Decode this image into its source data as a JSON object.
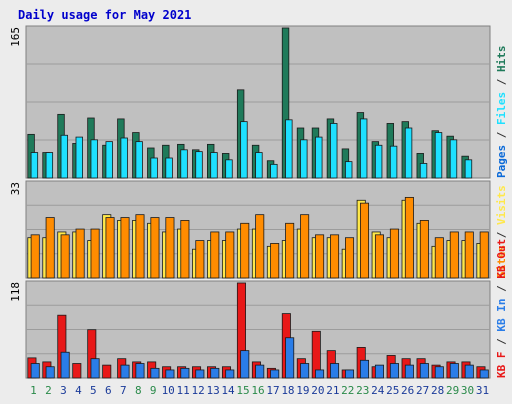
{
  "chart_data": {
    "type": "bar",
    "title": "Daily usage for May 2021",
    "categories": [
      "1",
      "2",
      "3",
      "4",
      "5",
      "6",
      "7",
      "8",
      "9",
      "10",
      "11",
      "12",
      "13",
      "14",
      "15",
      "16",
      "17",
      "18",
      "19",
      "20",
      "21",
      "22",
      "23",
      "24",
      "25",
      "26",
      "27",
      "28",
      "29",
      "30",
      "31"
    ],
    "weekend_days": [
      "1",
      "2",
      "8",
      "9",
      "15",
      "16",
      "22",
      "23",
      "29",
      "30"
    ],
    "colors": {
      "hits": "#1f7a5a",
      "files": "#1ee0ff",
      "pages": "#0b6ad8",
      "visits": "#ffe84a",
      "sites": "#ff8c00",
      "kb_in": "#2a7de8",
      "kb_out": "#e81818",
      "weekday_label": "#1a3a99",
      "weekend_label": "#2a8a4a",
      "title": "#0000cc"
    },
    "panels": [
      {
        "id": "hits-files-pages",
        "ymax_label": "165",
        "ymax": 165,
        "side_label": [
          "Pages",
          "Files",
          "Hits"
        ],
        "side_label_separator": " / ",
        "series": [
          {
            "name": "Hits",
            "values": [
              48,
              28,
              70,
              38,
              66,
              36,
              65,
              50,
              33,
              36,
              37,
              31,
              37,
              27,
              97,
              36,
              19,
              165,
              55,
              55,
              65,
              32,
              72,
              40,
              60,
              62,
              27,
              52,
              46,
              24,
              0
            ]
          },
          {
            "name": "Files",
            "values": [
              28,
              28,
              47,
              45,
              42,
              40,
              44,
              40,
              22,
              22,
              31,
              29,
              28,
              20,
              62,
              28,
              15,
              64,
              42,
              45,
              60,
              18,
              65,
              36,
              35,
              55,
              16,
              50,
              42,
              20,
              0
            ]
          },
          {
            "name": "Pages",
            "values": [
              0,
              0,
              0,
              0,
              0,
              0,
              0,
              0,
              0,
              0,
              0,
              0,
              0,
              0,
              0,
              0,
              0,
              0,
              0,
              0,
              0,
              0,
              0,
              0,
              0,
              0,
              0,
              0,
              0,
              0,
              0
            ]
          }
        ]
      },
      {
        "id": "visits-sites",
        "ymax_label": "33",
        "ymax": 33,
        "side_label": [
          "Sites",
          "Visits"
        ],
        "side_label_separator": " / ",
        "series": [
          {
            "name": "Visits",
            "values": [
              14,
              14,
              16,
              16,
              13,
              22,
              20,
              20,
              19,
              16,
              17,
              10,
              13,
              13,
              17,
              17,
              11,
              13,
              17,
              14,
              14,
              10,
              27,
              16,
              14,
              27,
              19,
              11,
              13,
              13,
              12
            ]
          },
          {
            "name": "Sites",
            "values": [
              15,
              21,
              15,
              17,
              17,
              21,
              21,
              22,
              21,
              21,
              20,
              13,
              16,
              16,
              19,
              22,
              12,
              19,
              22,
              15,
              15,
              14,
              26,
              15,
              17,
              28,
              20,
              14,
              16,
              16,
              16
            ]
          }
        ]
      },
      {
        "id": "kb-in-out",
        "ymax_label": "118",
        "ymax": 118,
        "side_label": [
          "KB F",
          "KB In",
          "KB Out"
        ],
        "side_label_separator": " / ",
        "series": [
          {
            "name": "KB Out",
            "values": [
              25,
              20,
              78,
              18,
              60,
              16,
              24,
              20,
              20,
              14,
              14,
              14,
              14,
              14,
              118,
              20,
              12,
              80,
              24,
              58,
              34,
              10,
              38,
              14,
              28,
              24,
              24,
              16,
              20,
              20,
              14
            ]
          },
          {
            "name": "KB In",
            "values": [
              18,
              14,
              32,
              0,
              24,
              0,
              16,
              18,
              12,
              10,
              12,
              10,
              12,
              10,
              34,
              16,
              10,
              50,
              18,
              10,
              18,
              10,
              22,
              16,
              18,
              16,
              18,
              14,
              18,
              16,
              10
            ]
          }
        ]
      }
    ]
  }
}
